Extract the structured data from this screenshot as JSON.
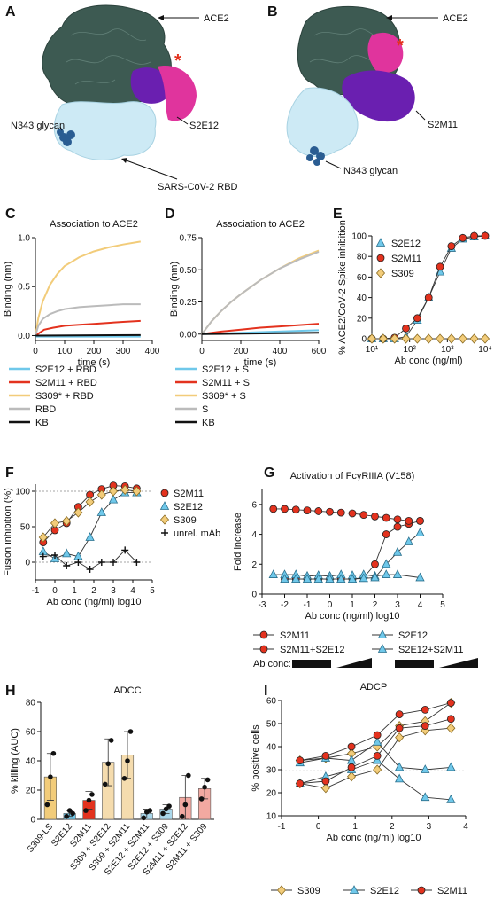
{
  "panels": {
    "A": {
      "label": "A",
      "annotations": [
        "ACE2",
        "S2E12",
        "N343 glycan",
        "SARS-CoV-2 RBD"
      ],
      "star": "*"
    },
    "B": {
      "label": "B",
      "annotations": [
        "ACE2",
        "S2M11",
        "N343 glycan"
      ],
      "star": "*"
    }
  },
  "colors": {
    "cyan": "#6fc8ea",
    "red": "#e3321e",
    "yellow": "#f2cc7a",
    "gray": "#bbbbbb",
    "black": "#111111",
    "ace2": "#3d5a52",
    "rbd": "#cdeaf5",
    "magenta": "#e0349d",
    "purple": "#6a1fb0",
    "glycan": "#2a5d92"
  },
  "chart_data": [
    {
      "id": "C",
      "panel_label": "C",
      "type": "line",
      "title": "Association to ACE2",
      "xlabel": "time (s)",
      "ylabel": "Binding (nm)",
      "xlim": [
        0,
        400
      ],
      "ylim": [
        -0.05,
        1.0
      ],
      "xticks": [
        0,
        100,
        200,
        300,
        400
      ],
      "yticks": [
        0.0,
        0.5,
        1.0
      ],
      "ytick_labels": [
        "0.0",
        "0.5",
        "1.0"
      ],
      "series": [
        {
          "name": "S2E12 + RBD",
          "color": "#6fc8ea",
          "x": [
            0,
            5,
            360
          ],
          "y": [
            0,
            -0.01,
            -0.01
          ]
        },
        {
          "name": "S2M11 + RBD",
          "color": "#e3321e",
          "x": [
            0,
            30,
            60,
            100,
            150,
            200,
            250,
            300,
            360
          ],
          "y": [
            0,
            0.06,
            0.08,
            0.1,
            0.11,
            0.12,
            0.13,
            0.14,
            0.15
          ]
        },
        {
          "name": "S309* + RBD",
          "color": "#f2cc7a",
          "x": [
            0,
            10,
            25,
            50,
            75,
            100,
            150,
            200,
            250,
            300,
            360
          ],
          "y": [
            0,
            0.18,
            0.35,
            0.52,
            0.63,
            0.71,
            0.8,
            0.86,
            0.9,
            0.93,
            0.96
          ]
        },
        {
          "name": "RBD",
          "color": "#bbbbbb",
          "x": [
            0,
            10,
            25,
            50,
            75,
            100,
            150,
            200,
            250,
            300,
            360
          ],
          "y": [
            0,
            0.1,
            0.17,
            0.22,
            0.25,
            0.27,
            0.29,
            0.3,
            0.31,
            0.32,
            0.32
          ]
        },
        {
          "name": "KB",
          "color": "#111111",
          "x": [
            0,
            360
          ],
          "y": [
            0,
            0.005
          ]
        }
      ],
      "legend_position": "below"
    },
    {
      "id": "D",
      "panel_label": "D",
      "type": "line",
      "title": "Association to ACE2",
      "xlabel": "time (s)",
      "ylabel": "Binding (nm)",
      "xlim": [
        0,
        600
      ],
      "ylim": [
        -0.05,
        0.75
      ],
      "xticks": [
        0,
        200,
        400,
        600
      ],
      "yticks": [
        0.0,
        0.25,
        0.5,
        0.75
      ],
      "ytick_labels": [
        "0.00",
        "0.25",
        "0.50",
        "0.75"
      ],
      "series": [
        {
          "name": "S2E12 + S",
          "color": "#6fc8ea",
          "x": [
            0,
            600
          ],
          "y": [
            0,
            0.03
          ]
        },
        {
          "name": "S2M11 + S",
          "color": "#e3321e",
          "x": [
            0,
            100,
            200,
            300,
            400,
            500,
            600
          ],
          "y": [
            0,
            0.02,
            0.035,
            0.05,
            0.06,
            0.07,
            0.08
          ]
        },
        {
          "name": "S309* + S",
          "color": "#f2cc7a",
          "x": [
            0,
            50,
            100,
            150,
            200,
            300,
            400,
            500,
            600
          ],
          "y": [
            0,
            0.1,
            0.18,
            0.25,
            0.31,
            0.42,
            0.51,
            0.59,
            0.65
          ]
        },
        {
          "name": "S",
          "color": "#bbbbbb",
          "x": [
            0,
            50,
            100,
            150,
            200,
            300,
            400,
            500,
            600
          ],
          "y": [
            0,
            0.1,
            0.18,
            0.25,
            0.31,
            0.42,
            0.51,
            0.58,
            0.64
          ]
        },
        {
          "name": "KB",
          "color": "#111111",
          "x": [
            0,
            600
          ],
          "y": [
            0,
            0.01
          ]
        }
      ],
      "legend_position": "below"
    },
    {
      "id": "E",
      "panel_label": "E",
      "type": "line",
      "title": "",
      "xlabel": "Ab conc (ng/ml)",
      "ylabel": "% ACE2/CoV-2 Spike inhibition",
      "xscale": "log",
      "xlim": [
        10,
        10000
      ],
      "ylim": [
        0,
        100
      ],
      "xtick_values": [
        10,
        100,
        1000,
        10000
      ],
      "xtick_labels": [
        "10¹",
        "10²",
        "10³",
        "10⁴"
      ],
      "yticks": [
        0,
        20,
        40,
        60,
        80,
        100
      ],
      "series": [
        {
          "name": "S2E12",
          "color": "#6fc8ea",
          "marker": "triangle",
          "x": [
            10,
            20,
            40,
            80,
            160,
            320,
            640,
            1280,
            2560,
            5120,
            10000
          ],
          "y": [
            0,
            0,
            0,
            2,
            18,
            40,
            65,
            88,
            97,
            99,
            100
          ]
        },
        {
          "name": "S2M11",
          "color": "#e3321e",
          "marker": "circle",
          "x": [
            10,
            20,
            40,
            80,
            160,
            320,
            640,
            1280,
            2560,
            5120,
            10000
          ],
          "y": [
            0,
            0,
            1,
            10,
            20,
            40,
            70,
            90,
            98,
            100,
            100
          ]
        },
        {
          "name": "S309",
          "color": "#f2cc7a",
          "marker": "diamond",
          "x": [
            10,
            20,
            40,
            80,
            160,
            320,
            640,
            1280,
            2560,
            5120,
            10000
          ],
          "y": [
            0,
            0,
            0,
            0,
            0,
            0,
            0,
            0,
            0,
            0,
            0
          ]
        }
      ],
      "legend_position": "top-left"
    },
    {
      "id": "F",
      "panel_label": "F",
      "type": "line",
      "title": "",
      "xlabel": "Ab conc (ng/ml) log10",
      "ylabel": "Fusion inhibition (%)",
      "xlim": [
        -1,
        5
      ],
      "ylim": [
        -25,
        110
      ],
      "xticks": [
        -1,
        0,
        1,
        2,
        3,
        4,
        5
      ],
      "yticks": [
        0,
        50,
        100
      ],
      "reference_lines": [
        0,
        100
      ],
      "series": [
        {
          "name": "S2M11",
          "color": "#e3321e",
          "marker": "circle",
          "x": [
            -0.6,
            0.0,
            0.6,
            1.2,
            1.8,
            2.4,
            3.0,
            3.6,
            4.2
          ],
          "y": [
            28,
            45,
            55,
            78,
            95,
            103,
            108,
            107,
            104
          ]
        },
        {
          "name": "S2E12",
          "color": "#6fc8ea",
          "marker": "triangle",
          "x": [
            -0.6,
            0.0,
            0.6,
            1.2,
            1.8,
            2.4,
            3.0,
            3.6,
            4.2
          ],
          "y": [
            15,
            5,
            12,
            8,
            35,
            70,
            88,
            98,
            98
          ]
        },
        {
          "name": "S309",
          "color": "#f2cc7a",
          "marker": "diamond",
          "x": [
            -0.6,
            0.0,
            0.6,
            1.2,
            1.8,
            2.4,
            3.0,
            3.6,
            4.2
          ],
          "y": [
            35,
            55,
            58,
            70,
            85,
            95,
            100,
            102,
            100
          ]
        },
        {
          "name": "unrel. mAb",
          "color": "#111111",
          "marker": "plus",
          "x": [
            -0.6,
            0.0,
            0.6,
            1.2,
            1.8,
            2.4,
            3.0,
            3.6,
            4.2
          ],
          "y": [
            8,
            10,
            -5,
            0,
            -10,
            0,
            0,
            17,
            0
          ]
        }
      ],
      "legend_position": "right"
    },
    {
      "id": "G",
      "panel_label": "G",
      "type": "line",
      "title": "Activation of FcγRIIIA (V158)",
      "xlabel": "Ab conc (ng/ml) log10",
      "ylabel": "Fold increase",
      "xlim": [
        -3,
        5
      ],
      "ylim": [
        0,
        7
      ],
      "xticks": [
        -3,
        -2,
        -1,
        0,
        1,
        2,
        3,
        4,
        5
      ],
      "yticks": [
        0,
        2,
        4,
        6
      ],
      "series": [
        {
          "name": "S2M11",
          "color": "#e3321e",
          "marker": "circle",
          "x": [
            -2,
            -1.5,
            -1,
            -0.5,
            0,
            0.5,
            1,
            1.5,
            2,
            2.5,
            3,
            3.5,
            4
          ],
          "y": [
            1.0,
            1.0,
            1.0,
            1.0,
            1.0,
            1.0,
            1.0,
            1.1,
            2.0,
            4.0,
            4.5,
            4.7,
            4.9
          ]
        },
        {
          "name": "S2M11+S2E12",
          "color": "#e3321e",
          "marker": "circle",
          "x": [
            -2.5,
            -2,
            -1.5,
            -1,
            -0.5,
            0,
            0.5,
            1,
            1.5,
            2,
            2.5,
            3,
            3.5,
            4
          ],
          "y": [
            5.7,
            5.7,
            5.65,
            5.6,
            5.55,
            5.5,
            5.45,
            5.4,
            5.3,
            5.2,
            5.1,
            5.0,
            4.9,
            4.9
          ]
        },
        {
          "name": "S2E12",
          "color": "#6fc8ea",
          "marker": "triangle",
          "x": [
            -2.5,
            -2,
            -1.5,
            -1,
            -0.5,
            0,
            0.5,
            1,
            1.5,
            2,
            2.5,
            3,
            4
          ],
          "y": [
            1.3,
            1.3,
            1.3,
            1.2,
            1.25,
            1.2,
            1.3,
            1.25,
            1.3,
            1.2,
            1.3,
            1.3,
            1.1
          ]
        },
        {
          "name": "S2E12+S2M11",
          "color": "#6fc8ea",
          "marker": "triangle",
          "x": [
            -2,
            -1.5,
            -1,
            -0.5,
            0,
            0.5,
            1,
            1.5,
            2,
            2.5,
            3,
            3.5,
            4
          ],
          "y": [
            1.0,
            1.0,
            1.0,
            1.0,
            1.0,
            1.0,
            1.0,
            1.05,
            1.1,
            2.0,
            2.8,
            3.5,
            4.1
          ]
        }
      ],
      "legend_position": "below",
      "ab_conc_label": "Ab conc:"
    },
    {
      "id": "H",
      "panel_label": "H",
      "type": "bar",
      "title": "ADCC",
      "ylabel": "% killing (AUC)",
      "ylim": [
        0,
        80
      ],
      "yticks": [
        0,
        20,
        40,
        60,
        80
      ],
      "categories": [
        "S309-LS",
        "S2E12",
        "S2M11",
        "S309 + S2E12",
        "S309 + S2M11",
        "S2E12 + S2M11",
        "S2E12 + S309",
        "S2M11 + S2E12",
        "S2M11 + S309"
      ],
      "values": [
        29,
        4,
        13,
        39,
        44,
        4,
        7,
        15,
        21
      ],
      "errors": [
        16,
        2,
        6,
        16,
        16,
        3,
        3,
        15,
        7
      ],
      "points": [
        [
          10,
          29,
          45
        ],
        [
          2,
          6,
          4
        ],
        [
          6,
          13,
          17
        ],
        [
          24,
          38,
          54
        ],
        [
          28,
          40,
          60
        ],
        [
          1,
          5,
          6
        ],
        [
          4,
          7,
          9
        ],
        [
          2,
          10,
          30
        ],
        [
          14,
          22,
          27
        ]
      ],
      "colors": [
        "#f2cc7a",
        "#6fc8ea",
        "#e3321e",
        "#f5dcae",
        "#f5dcae",
        "#aad8ec",
        "#aad8ec",
        "#f2a9a1",
        "#f2a9a1"
      ]
    },
    {
      "id": "I",
      "panel_label": "I",
      "type": "line",
      "title": "ADCP",
      "xlabel": "Ab conc (ng/ml) log10",
      "ylabel": "% positive cells",
      "xlim": [
        -1,
        4
      ],
      "ylim": [
        10,
        60
      ],
      "xticks": [
        -1,
        0,
        1,
        2,
        3,
        4
      ],
      "yticks": [
        10,
        20,
        30,
        40,
        50,
        60
      ],
      "reference_lines": [
        29.5
      ],
      "series": [
        {
          "name": "S309",
          "color": "#f2cc7a",
          "marker": "diamond",
          "x": [
            -0.5,
            0.2,
            0.9,
            1.6,
            2.2,
            2.9,
            3.6
          ],
          "y": [
            34,
            35,
            37,
            40,
            49,
            51,
            59
          ]
        },
        {
          "name": "S309",
          "color": "#f2cc7a",
          "marker": "diamond",
          "x": [
            -0.5,
            0.2,
            0.9,
            1.6,
            2.2,
            2.9,
            3.6
          ],
          "y": [
            24,
            22,
            27,
            30,
            44,
            47,
            48
          ]
        },
        {
          "name": "S2E12",
          "color": "#6fc8ea",
          "marker": "triangle",
          "x": [
            -0.5,
            0.2,
            0.9,
            1.6,
            2.2,
            2.9,
            3.6
          ],
          "y": [
            33,
            35,
            34,
            42,
            31,
            30,
            31
          ]
        },
        {
          "name": "S2E12",
          "color": "#6fc8ea",
          "marker": "triangle",
          "x": [
            -0.5,
            0.2,
            0.9,
            1.6,
            2.2,
            2.9,
            3.6
          ],
          "y": [
            24,
            27,
            30,
            34,
            26,
            18,
            17
          ]
        },
        {
          "name": "S2M11",
          "color": "#e3321e",
          "marker": "circle",
          "x": [
            -0.5,
            0.2,
            0.9,
            1.6,
            2.2,
            2.9,
            3.6
          ],
          "y": [
            34,
            36,
            40,
            45,
            54,
            56,
            59
          ]
        },
        {
          "name": "S2M11",
          "color": "#e3321e",
          "marker": "circle",
          "x": [
            -0.5,
            0.2,
            0.9,
            1.6,
            2.2,
            2.9,
            3.6
          ],
          "y": [
            24,
            25,
            31,
            36,
            48,
            49,
            52
          ]
        }
      ],
      "legend_entries": [
        "S309",
        "S2E12",
        "S2M11"
      ],
      "legend_position": "below"
    }
  ]
}
